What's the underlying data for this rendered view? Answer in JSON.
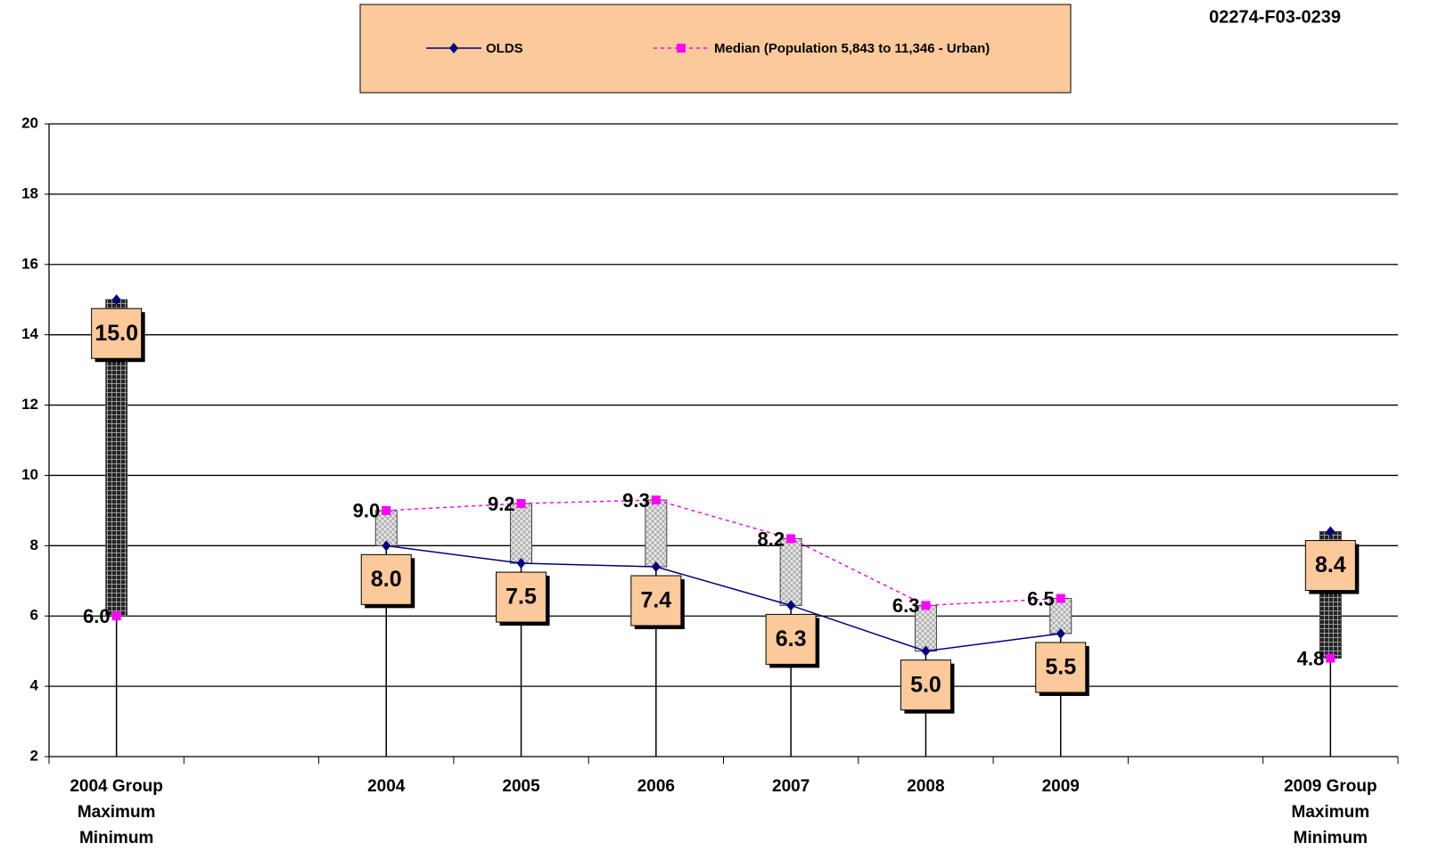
{
  "chart_data": {
    "type": "line",
    "code": "02274-F03-0239",
    "categories": [
      "2004 Group\nMaximum\nMinimum",
      null,
      "2004",
      "2005",
      "2006",
      "2007",
      "2008",
      "2009",
      null,
      "2009 Group\nMaximum\nMinimum"
    ],
    "series": [
      {
        "name": "OLDS",
        "color": "#000080",
        "marker": "diamond",
        "dash": false,
        "values": [
          15.0,
          null,
          8.0,
          7.5,
          7.4,
          6.3,
          5.0,
          5.5,
          null,
          8.4
        ],
        "value_labels": [
          "15.0",
          null,
          "8.0",
          "7.5",
          "7.4",
          "6.3",
          "5.0",
          "5.5",
          null,
          "8.4"
        ]
      },
      {
        "name": "Median (Population 5,843 to 11,346 - Urban)",
        "color": "#ff00ff",
        "marker": "square",
        "dash": true,
        "values": [
          6.0,
          null,
          9.0,
          9.2,
          9.3,
          8.2,
          6.3,
          6.5,
          null,
          4.8
        ],
        "value_labels": [
          "6.0",
          null,
          "9.0",
          "9.2",
          "9.3",
          "8.2",
          "6.3",
          "6.5",
          null,
          "4.8"
        ]
      }
    ],
    "ylim": [
      2,
      20
    ],
    "yticks": [
      2,
      4,
      6,
      8,
      10,
      12,
      14,
      16,
      18,
      20
    ],
    "grid": true
  }
}
